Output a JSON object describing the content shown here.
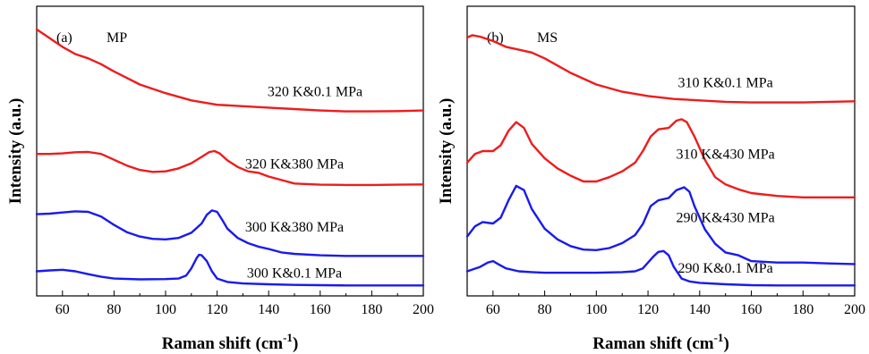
{
  "colors": {
    "red": "#ee1c1c",
    "blue": "#1a1aee"
  },
  "chart_data": [
    {
      "type": "line",
      "panel_label": "(a)",
      "title": "MP",
      "xlabel": "Raman shift",
      "xlabel_unit": "(cm",
      "xlabel_sup": "-1",
      "xlabel_close": ")",
      "ylabel": "Intensity (a.u.)",
      "xlim": [
        50,
        200
      ],
      "ylim": [
        0,
        1
      ],
      "xticks": [
        60,
        80,
        100,
        120,
        140,
        160,
        180,
        200
      ],
      "grid": false,
      "series": [
        {
          "name": "320 K&0.1 MPa",
          "color": "red",
          "x": [
            50,
            55,
            60,
            65,
            70,
            75,
            80,
            90,
            100,
            110,
            120,
            130,
            140,
            150,
            160,
            170,
            180,
            190,
            200
          ],
          "y": [
            0.92,
            0.89,
            0.86,
            0.835,
            0.82,
            0.8,
            0.775,
            0.73,
            0.7,
            0.675,
            0.66,
            0.655,
            0.65,
            0.645,
            0.64,
            0.637,
            0.637,
            0.638,
            0.64
          ]
        },
        {
          "name": "320 K&380 MPa",
          "color": "red",
          "x": [
            50,
            55,
            60,
            65,
            70,
            75,
            80,
            85,
            90,
            95,
            100,
            105,
            110,
            114,
            117,
            119,
            121,
            124,
            128,
            132,
            136,
            140,
            145,
            150,
            160,
            170,
            180,
            190,
            200
          ],
          "y": [
            0.49,
            0.49,
            0.492,
            0.496,
            0.497,
            0.49,
            0.47,
            0.45,
            0.435,
            0.428,
            0.43,
            0.44,
            0.458,
            0.48,
            0.497,
            0.5,
            0.492,
            0.468,
            0.445,
            0.43,
            0.425,
            0.412,
            0.4,
            0.388,
            0.384,
            0.383,
            0.383,
            0.384,
            0.385
          ]
        },
        {
          "name": "300 K&380 MPa",
          "color": "blue",
          "x": [
            50,
            55,
            60,
            65,
            70,
            75,
            80,
            85,
            90,
            95,
            100,
            105,
            110,
            114,
            116,
            118,
            120,
            122,
            124,
            128,
            132,
            136,
            140,
            145,
            150,
            160,
            170,
            180,
            190,
            200
          ],
          "y": [
            0.282,
            0.284,
            0.288,
            0.292,
            0.29,
            0.274,
            0.245,
            0.22,
            0.205,
            0.197,
            0.195,
            0.2,
            0.218,
            0.25,
            0.28,
            0.295,
            0.29,
            0.262,
            0.232,
            0.2,
            0.182,
            0.17,
            0.162,
            0.15,
            0.145,
            0.14,
            0.138,
            0.138,
            0.138,
            0.138
          ]
        },
        {
          "name": "300 K&0.1 MPa",
          "color": "blue",
          "x": [
            50,
            55,
            60,
            65,
            70,
            75,
            80,
            90,
            100,
            105,
            108,
            110,
            112,
            113,
            114,
            116,
            118,
            120,
            124,
            130,
            140,
            150,
            160,
            170,
            180,
            190,
            200
          ],
          "y": [
            0.085,
            0.088,
            0.09,
            0.085,
            0.075,
            0.066,
            0.06,
            0.057,
            0.058,
            0.06,
            0.07,
            0.095,
            0.13,
            0.142,
            0.14,
            0.12,
            0.085,
            0.06,
            0.048,
            0.043,
            0.04,
            0.038,
            0.037,
            0.036,
            0.036,
            0.036,
            0.036
          ]
        }
      ],
      "annotations": [
        {
          "text": "320 K&0.1 MPa",
          "x": 158,
          "y": 0.69
        },
        {
          "text": "320 K&380 MPa",
          "x": 150,
          "y": 0.44
        },
        {
          "text": "300 K&380 MPa",
          "x": 150,
          "y": 0.222
        },
        {
          "text": "300 K&0.1 MPa",
          "x": 150,
          "y": 0.064
        }
      ]
    },
    {
      "type": "line",
      "panel_label": "(b)",
      "title": "MS",
      "xlabel": "Raman shift",
      "xlabel_unit": "(cm",
      "xlabel_sup": "-1",
      "xlabel_close": ")",
      "ylabel": "Intensity (a.u.)",
      "xlim": [
        50,
        200
      ],
      "ylim": [
        0,
        1
      ],
      "xticks": [
        60,
        80,
        100,
        120,
        140,
        160,
        180,
        200
      ],
      "grid": false,
      "series": [
        {
          "name": "310 K&0.1 MPa",
          "color": "red",
          "x": [
            50,
            52,
            55,
            60,
            65,
            70,
            75,
            80,
            90,
            100,
            110,
            120,
            130,
            140,
            150,
            160,
            170,
            180,
            190,
            200
          ],
          "y": [
            0.892,
            0.9,
            0.895,
            0.88,
            0.86,
            0.85,
            0.84,
            0.82,
            0.77,
            0.73,
            0.705,
            0.69,
            0.68,
            0.675,
            0.67,
            0.668,
            0.668,
            0.668,
            0.67,
            0.672
          ]
        },
        {
          "name": "310 K&430 MPa",
          "color": "red",
          "x": [
            50,
            53,
            56,
            60,
            63,
            66,
            69,
            72,
            75,
            80,
            85,
            90,
            95,
            100,
            105,
            110,
            115,
            118,
            121,
            124,
            128,
            131,
            133,
            135,
            138,
            142,
            146,
            150,
            155,
            160,
            170,
            180,
            190,
            200
          ],
          "y": [
            0.46,
            0.49,
            0.5,
            0.5,
            0.52,
            0.57,
            0.6,
            0.58,
            0.525,
            0.475,
            0.44,
            0.415,
            0.395,
            0.395,
            0.41,
            0.43,
            0.46,
            0.5,
            0.55,
            0.575,
            0.58,
            0.605,
            0.61,
            0.6,
            0.55,
            0.47,
            0.41,
            0.385,
            0.368,
            0.355,
            0.345,
            0.34,
            0.34,
            0.34
          ]
        },
        {
          "name": "290 K&430 MPa",
          "color": "blue",
          "x": [
            50,
            53,
            56,
            60,
            63,
            66,
            69,
            72,
            75,
            80,
            85,
            90,
            95,
            100,
            105,
            110,
            115,
            118,
            121,
            124,
            128,
            131,
            134,
            136,
            138,
            142,
            146,
            150,
            155,
            160,
            170,
            180,
            190,
            200
          ],
          "y": [
            0.205,
            0.24,
            0.255,
            0.25,
            0.27,
            0.33,
            0.38,
            0.365,
            0.3,
            0.232,
            0.195,
            0.172,
            0.16,
            0.158,
            0.165,
            0.182,
            0.21,
            0.248,
            0.31,
            0.33,
            0.338,
            0.365,
            0.375,
            0.36,
            0.31,
            0.23,
            0.18,
            0.15,
            0.14,
            0.12,
            0.115,
            0.115,
            0.112,
            0.11
          ]
        },
        {
          "name": "290 K&0.1 MPa",
          "color": "blue",
          "x": [
            50,
            55,
            58,
            60,
            62,
            65,
            70,
            75,
            80,
            90,
            100,
            110,
            115,
            118,
            120,
            122,
            124,
            126,
            128,
            130,
            133,
            136,
            140,
            150,
            160,
            170,
            180,
            190,
            200
          ],
          "y": [
            0.085,
            0.1,
            0.115,
            0.12,
            0.11,
            0.095,
            0.085,
            0.082,
            0.08,
            0.08,
            0.08,
            0.082,
            0.085,
            0.095,
            0.115,
            0.135,
            0.152,
            0.155,
            0.14,
            0.1,
            0.06,
            0.05,
            0.045,
            0.04,
            0.037,
            0.036,
            0.036,
            0.036,
            0.036
          ]
        }
      ],
      "annotations": [
        {
          "text": "310 K&0.1 MPa",
          "x": 150,
          "y": 0.72
        },
        {
          "text": "310 K&430 MPa",
          "x": 150,
          "y": 0.473
        },
        {
          "text": "290 K&430 MPa",
          "x": 150,
          "y": 0.255
        },
        {
          "text": "290 K&0.1 MPa",
          "x": 150,
          "y": 0.08
        }
      ]
    }
  ]
}
